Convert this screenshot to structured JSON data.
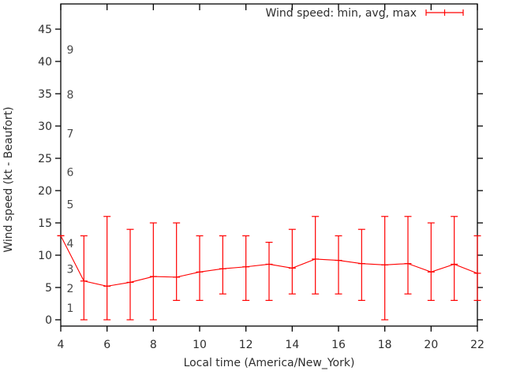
{
  "chart_data": {
    "type": "line",
    "subtype": "errorbar",
    "title": "",
    "legend": "Wind speed: min, avg, max",
    "xlabel": "Local time (America/New_York)",
    "ylabel": "Wind speed (kt - Beaufort)",
    "x": [
      4,
      5,
      6,
      7,
      8,
      9,
      10,
      11,
      12,
      13,
      14,
      15,
      16,
      17,
      18,
      19,
      20,
      21,
      22
    ],
    "series": [
      {
        "name": "avg",
        "values": [
          13,
          6.0,
          5.2,
          5.8,
          6.7,
          6.6,
          7.4,
          7.9,
          8.2,
          8.6,
          8.0,
          9.4,
          9.2,
          8.7,
          8.5,
          8.7,
          7.4,
          8.6,
          7.2
        ]
      },
      {
        "name": "min",
        "values": [
          13,
          0,
          0,
          0,
          0,
          3,
          3,
          4,
          3,
          3,
          4,
          4,
          4,
          3,
          0,
          4,
          3,
          3,
          3
        ]
      },
      {
        "name": "max",
        "values": [
          13,
          13,
          16,
          14,
          15,
          15,
          13,
          13,
          13,
          12,
          14,
          16,
          13,
          14,
          16,
          16,
          15,
          16,
          13
        ]
      }
    ],
    "xlim": [
      4,
      22
    ],
    "ylim": [
      0,
      45
    ],
    "x_ticks": [
      4,
      6,
      8,
      10,
      12,
      14,
      16,
      18,
      20,
      22
    ],
    "y_ticks": [
      0,
      5,
      10,
      15,
      20,
      25,
      30,
      35,
      40,
      45
    ],
    "beaufort_scale": [
      {
        "label": "1",
        "kt": 1
      },
      {
        "label": "2",
        "kt": 4
      },
      {
        "label": "3",
        "kt": 7
      },
      {
        "label": "4",
        "kt": 11
      },
      {
        "label": "5",
        "kt": 17
      },
      {
        "label": "6",
        "kt": 22
      },
      {
        "label": "7",
        "kt": 28
      },
      {
        "label": "8",
        "kt": 34
      },
      {
        "label": "9",
        "kt": 41
      }
    ],
    "grid": false,
    "legend_position": "top-right",
    "series_color": "#ff0000",
    "border_color": "#000000",
    "text_color": "#2e2e2e",
    "background_color": "#ffffff"
  }
}
